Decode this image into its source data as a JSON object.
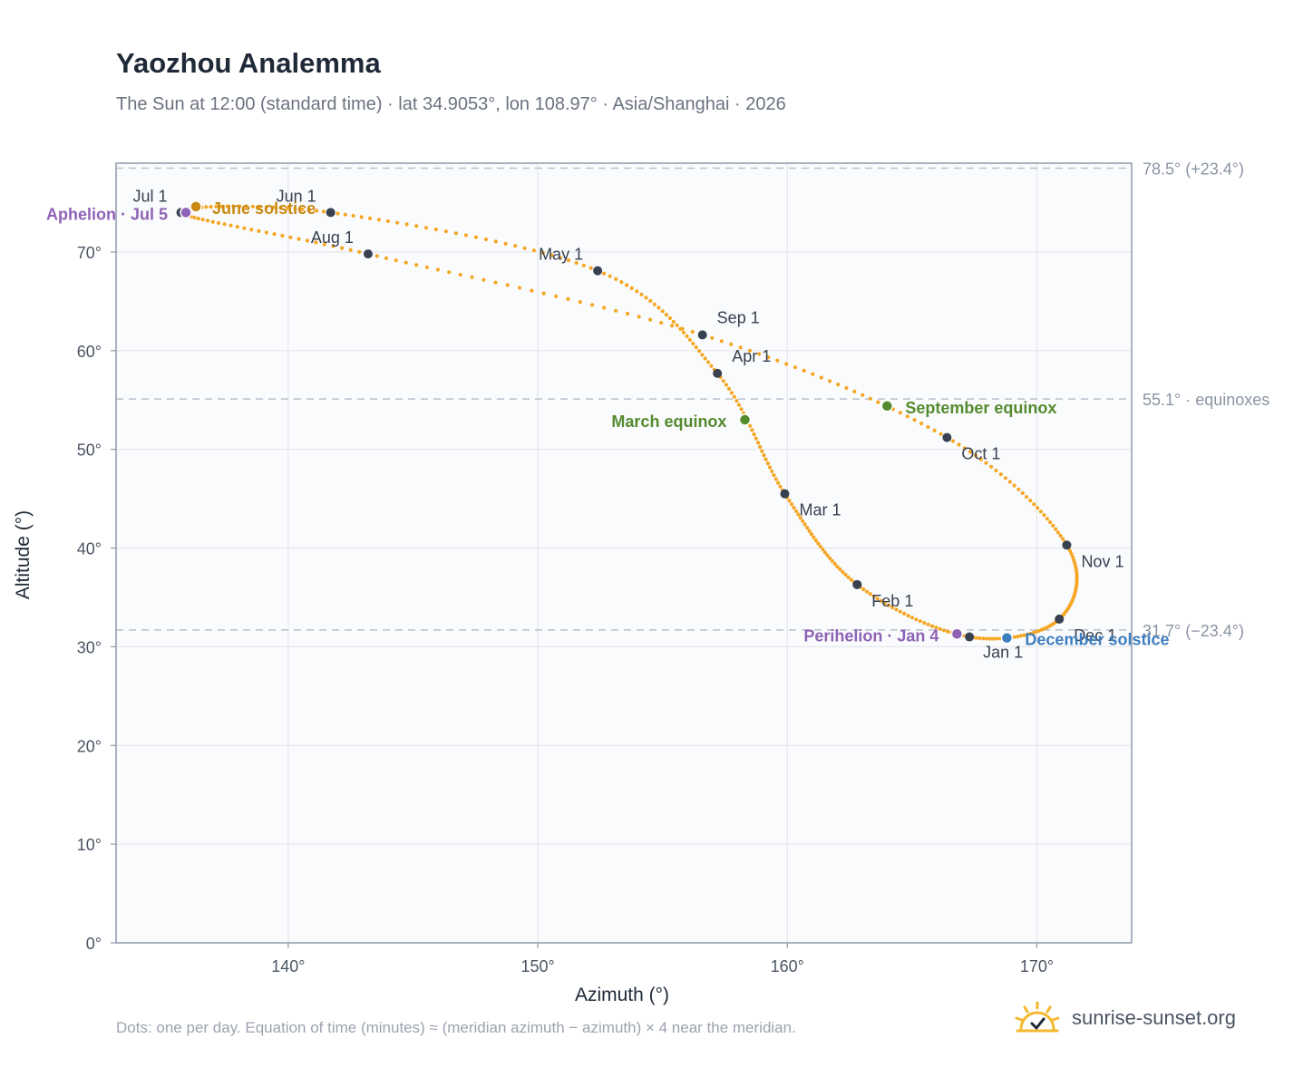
{
  "header": {
    "title": "Yaozhou Analemma",
    "subtitle": "The Sun at 12:00 (standard time) · lat 34.9053°, lon 108.97° · Asia/Shanghai · 2026"
  },
  "footer": {
    "note": "Dots: one per day. Equation of time (minutes) ≈ (meridian azimuth − azimuth) × 4 near the meridian.",
    "brand": "sunrise-sunset.org"
  },
  "colors": {
    "curve": "#f5a623",
    "month_marker": "#374151",
    "solstice_june": "#c98a12",
    "equinox": "#558b2f",
    "solstice_december": "#3d7ebf",
    "apsis": "#8e63b5",
    "grid": "#e5e7eb",
    "plot_bg": "#fafbfd",
    "frame": "#8f9aab",
    "ref_line": "#b9c0cb",
    "brand_sun": "#f5b82e"
  },
  "chart_data": {
    "type": "scatter",
    "title": "Yaozhou Analemma",
    "xlabel": "Azimuth (°)",
    "ylabel": "Altitude (°)",
    "xlim": [
      133.1,
      173.8
    ],
    "ylim": [
      0,
      79
    ],
    "xticks": [
      140,
      150,
      160,
      170
    ],
    "yticks": [
      0,
      10,
      20,
      30,
      40,
      50,
      60,
      70
    ],
    "xtick_labels": [
      "140°",
      "150°",
      "160°",
      "170°"
    ],
    "ytick_labels": [
      "0°",
      "10°",
      "20°",
      "30°",
      "40°",
      "50°",
      "60°",
      "70°"
    ],
    "grid": true,
    "series": [
      {
        "points": [
          {
            "x": 167.3,
            "y": 31.0
          },
          {
            "x": 162.8,
            "y": 36.3
          },
          {
            "x": 159.9,
            "y": 45.5
          },
          {
            "x": 157.2,
            "y": 57.7
          },
          {
            "x": 152.4,
            "y": 68.1
          },
          {
            "x": 141.7,
            "y": 74.0
          },
          {
            "x": 135.7,
            "y": 74.0
          },
          {
            "x": 143.2,
            "y": 69.8
          },
          {
            "x": 156.6,
            "y": 61.6
          },
          {
            "x": 166.4,
            "y": 51.2
          },
          {
            "x": 171.2,
            "y": 40.3
          },
          {
            "x": 170.9,
            "y": 32.8
          },
          {
            "x": 167.3,
            "y": 31.0
          }
        ]
      }
    ],
    "month_markers": [
      {
        "label": "Jan 1",
        "x": 167.3,
        "y": 31.0
      },
      {
        "label": "Feb 1",
        "x": 162.8,
        "y": 36.3
      },
      {
        "label": "Mar 1",
        "x": 159.9,
        "y": 45.5
      },
      {
        "label": "Apr 1",
        "x": 157.2,
        "y": 57.7
      },
      {
        "label": "May 1",
        "x": 152.4,
        "y": 68.1
      },
      {
        "label": "Jun 1",
        "x": 141.7,
        "y": 74.0
      },
      {
        "label": "Jul 1",
        "x": 135.7,
        "y": 74.0
      },
      {
        "label": "Aug 1",
        "x": 143.2,
        "y": 69.8
      },
      {
        "label": "Sep 1",
        "x": 156.6,
        "y": 61.6
      },
      {
        "label": "Oct 1",
        "x": 166.4,
        "y": 51.2
      },
      {
        "label": "Nov 1",
        "x": 171.2,
        "y": 40.3
      },
      {
        "label": "Dec 1",
        "x": 170.9,
        "y": 32.8
      }
    ],
    "events": [
      {
        "label": "June solstice",
        "x": 136.3,
        "y": 74.6,
        "kind": "solstice_june"
      },
      {
        "label": "Aphelion · Jul 5",
        "x": 135.9,
        "y": 74.0,
        "kind": "apsis"
      },
      {
        "label": "March equinox",
        "x": 158.3,
        "y": 53.0,
        "kind": "equinox"
      },
      {
        "label": "September equinox",
        "x": 164.0,
        "y": 54.4,
        "kind": "equinox"
      },
      {
        "label": "Perihelion · Jan 4",
        "x": 166.8,
        "y": 31.3,
        "kind": "apsis"
      },
      {
        "label": "December solstice",
        "x": 168.8,
        "y": 30.9,
        "kind": "solstice_december"
      }
    ],
    "reference_lines": [
      {
        "label": "78.5° (+23.4°)",
        "y": 78.5
      },
      {
        "label": "55.1° · equinoxes",
        "y": 55.1
      },
      {
        "label": "31.7° (−23.4°)",
        "y": 31.7
      }
    ]
  }
}
